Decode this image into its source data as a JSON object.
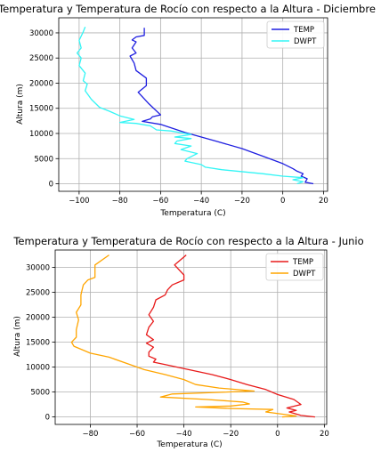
{
  "chart_data": [
    {
      "type": "line",
      "title": "Temperatura y Temperatura de Rocío con respecto a la Altura - Diciembre",
      "xlabel": "Temperatura (C)",
      "ylabel": "Altura (m)",
      "xlim": [
        -110,
        22
      ],
      "ylim": [
        -1500,
        33000
      ],
      "xticks": [
        -100,
        -80,
        -60,
        -40,
        -20,
        0,
        20
      ],
      "yticks": [
        0,
        5000,
        10000,
        15000,
        20000,
        25000,
        30000
      ],
      "grid": true,
      "legend": "top-right",
      "series": [
        {
          "name": "TEMP",
          "color": "#1f1fe0",
          "points": [
            [
              15,
              0
            ],
            [
              11,
              300
            ],
            [
              12,
              1000
            ],
            [
              9,
              1500
            ],
            [
              10,
              2000
            ],
            [
              7,
              2500
            ],
            [
              5,
              3000
            ],
            [
              0,
              4000
            ],
            [
              -10,
              5500
            ],
            [
              -20,
              7000
            ],
            [
              -33,
              8500
            ],
            [
              -48,
              10200
            ],
            [
              -60,
              11800
            ],
            [
              -69,
              12400
            ],
            [
              -65,
              12900
            ],
            [
              -64,
              13300
            ],
            [
              -60,
              13700
            ],
            [
              -66,
              16000
            ],
            [
              -71,
              18200
            ],
            [
              -67,
              19500
            ],
            [
              -67,
              21000
            ],
            [
              -72,
              22500
            ],
            [
              -73,
              24000
            ],
            [
              -75,
              25400
            ],
            [
              -72,
              26000
            ],
            [
              -74,
              27000
            ],
            [
              -72,
              28200
            ],
            [
              -74,
              28600
            ],
            [
              -72,
              29200
            ],
            [
              -68,
              29500
            ],
            [
              -68,
              31000
            ]
          ]
        },
        {
          "name": "DWPT",
          "color": "#33f5f5",
          "points": [
            [
              7,
              0
            ],
            [
              10,
              400
            ],
            [
              5,
              800
            ],
            [
              10,
              1200
            ],
            [
              0,
              1500
            ],
            [
              -10,
              2000
            ],
            [
              -30,
              2800
            ],
            [
              -38,
              3300
            ],
            [
              -40,
              3800
            ],
            [
              -48,
              4500
            ],
            [
              -47,
              5000
            ],
            [
              -42,
              6000
            ],
            [
              -50,
              6800
            ],
            [
              -45,
              7500
            ],
            [
              -53,
              8000
            ],
            [
              -52,
              8500
            ],
            [
              -45,
              9000
            ],
            [
              -53,
              9300
            ],
            [
              -45,
              9800
            ],
            [
              -55,
              10500
            ],
            [
              -62,
              10700
            ],
            [
              -65,
              11500
            ],
            [
              -72,
              12000
            ],
            [
              -80,
              12200
            ],
            [
              -73,
              12800
            ],
            [
              -80,
              13500
            ],
            [
              -85,
              14400
            ],
            [
              -90,
              15200
            ],
            [
              -94,
              16800
            ],
            [
              -97,
              18500
            ],
            [
              -96,
              19800
            ],
            [
              -98,
              20500
            ],
            [
              -97,
              22000
            ],
            [
              -100,
              23500
            ],
            [
              -99,
              25000
            ],
            [
              -101,
              26000
            ],
            [
              -99,
              27000
            ],
            [
              -100,
              28500
            ],
            [
              -98,
              30200
            ],
            [
              -97,
              31200
            ]
          ]
        }
      ]
    },
    {
      "type": "line",
      "title": "Temperatura y Temperatura de Rocío con respecto a la Altura - Junio",
      "xlabel": "Temperatura (C)",
      "ylabel": "Altura (m)",
      "xlim": [
        -95,
        21
      ],
      "ylim": [
        -1500,
        33500
      ],
      "xticks": [
        -80,
        -60,
        -40,
        -20,
        0,
        20
      ],
      "yticks": [
        0,
        5000,
        10000,
        15000,
        20000,
        25000,
        30000
      ],
      "grid": true,
      "legend": "top-right",
      "series": [
        {
          "name": "TEMP",
          "color": "#e81a1a",
          "points": [
            [
              16,
              0
            ],
            [
              10,
              300
            ],
            [
              5,
              1000
            ],
            [
              8,
              1300
            ],
            [
              4,
              1800
            ],
            [
              10,
              2500
            ],
            [
              7,
              3500
            ],
            [
              0,
              4500
            ],
            [
              -5,
              5500
            ],
            [
              -13,
              6500
            ],
            [
              -20,
              7500
            ],
            [
              -28,
              8500
            ],
            [
              -40,
              9700
            ],
            [
              -48,
              10500
            ],
            [
              -53,
              11000
            ],
            [
              -52,
              11600
            ],
            [
              -55,
              12200
            ],
            [
              -55,
              13000
            ],
            [
              -53,
              14000
            ],
            [
              -56,
              14800
            ],
            [
              -53,
              15500
            ],
            [
              -56,
              16500
            ],
            [
              -55,
              18000
            ],
            [
              -53,
              19200
            ],
            [
              -55,
              20500
            ],
            [
              -53,
              22000
            ],
            [
              -52,
              23500
            ],
            [
              -48,
              24500
            ],
            [
              -47,
              25500
            ],
            [
              -45,
              26500
            ],
            [
              -40,
              27500
            ],
            [
              -40,
              28500
            ],
            [
              -44,
              30500
            ],
            [
              -39,
              32500
            ]
          ]
        },
        {
          "name": "DWPT",
          "color": "#ffa500",
          "points": [
            [
              2,
              0
            ],
            [
              8,
              200
            ],
            [
              -5,
              1000
            ],
            [
              -2,
              1500
            ],
            [
              -20,
              1700
            ],
            [
              -35,
              2000
            ],
            [
              -20,
              2200
            ],
            [
              -12,
              2600
            ],
            [
              -15,
              3000
            ],
            [
              -30,
              3500
            ],
            [
              -50,
              4000
            ],
            [
              -45,
              4600
            ],
            [
              -10,
              5200
            ],
            [
              -25,
              5800
            ],
            [
              -35,
              6500
            ],
            [
              -40,
              7500
            ],
            [
              -48,
              8500
            ],
            [
              -57,
              9500
            ],
            [
              -63,
              10500
            ],
            [
              -72,
              12000
            ],
            [
              -80,
              12800
            ],
            [
              -87,
              14200
            ],
            [
              -88,
              15000
            ],
            [
              -86,
              16000
            ],
            [
              -86,
              17500
            ],
            [
              -85,
              19500
            ],
            [
              -86,
              21000
            ],
            [
              -84,
              22500
            ],
            [
              -84,
              24500
            ],
            [
              -83,
              26500
            ],
            [
              -81,
              27500
            ],
            [
              -78,
              28000
            ],
            [
              -78,
              30500
            ],
            [
              -72,
              32500
            ]
          ]
        }
      ]
    }
  ]
}
